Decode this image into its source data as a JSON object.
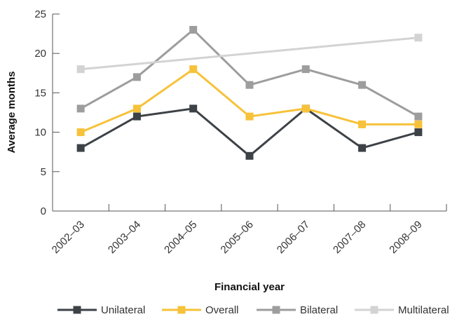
{
  "chart_data": {
    "type": "line",
    "xlabel": "Financial year",
    "ylabel": "Average months",
    "ylim": [
      0,
      25
    ],
    "yticks": [
      0,
      5,
      10,
      15,
      20,
      25
    ],
    "categories": [
      "2002–03",
      "2003–04",
      "2004–05",
      "2005–06",
      "2006–07",
      "2007–08",
      "2008–09"
    ],
    "legend_position": "bottom",
    "grid": false,
    "series": [
      {
        "name": "Unilateral",
        "color": "#3d4247",
        "marker": "square",
        "values": [
          8,
          12,
          13,
          7,
          13,
          8,
          10
        ]
      },
      {
        "name": "Overall",
        "color": "#f7c23a",
        "marker": "square",
        "values": [
          10,
          13,
          18,
          12,
          13,
          11,
          11
        ]
      },
      {
        "name": "Bilateral",
        "color": "#9d9d9d",
        "marker": "square",
        "values": [
          13,
          17,
          23,
          16,
          18,
          16,
          12
        ]
      },
      {
        "name": "Multilateral",
        "color": "#d3d3d3",
        "marker": "square",
        "values": [
          18,
          null,
          null,
          null,
          null,
          null,
          22
        ]
      }
    ]
  }
}
